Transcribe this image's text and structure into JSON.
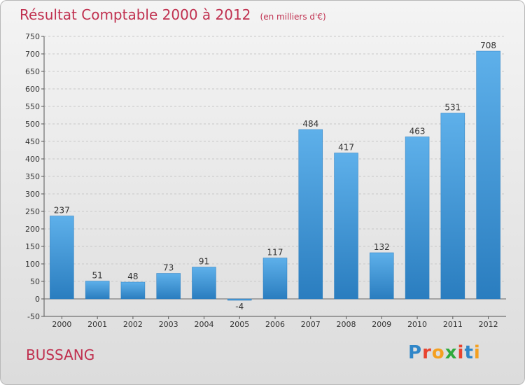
{
  "header": {
    "title": "Résultat Comptable 2000 à 2012",
    "unit": "(en milliers d'€)"
  },
  "footer": {
    "commune": "BUSSANG",
    "brand": "Proxiti"
  },
  "colors": {
    "title": "#c0304f",
    "bar_top": "#5eb0ea",
    "bar_bottom": "#2a7dbf",
    "grid": "#c8c8c8"
  },
  "chart_data": {
    "type": "bar",
    "title": "Résultat Comptable 2000 à 2012",
    "categories": [
      "2000",
      "2001",
      "2002",
      "2003",
      "2004",
      "2005",
      "2006",
      "2007",
      "2008",
      "2009",
      "2010",
      "2011",
      "2012"
    ],
    "values": [
      237,
      51,
      48,
      73,
      91,
      -4,
      117,
      484,
      417,
      132,
      463,
      531,
      708
    ],
    "ylim": [
      -50,
      750
    ],
    "yticks": [
      -50,
      0,
      50,
      100,
      150,
      200,
      250,
      300,
      350,
      400,
      450,
      500,
      550,
      600,
      650,
      700,
      750
    ],
    "grid": true
  }
}
